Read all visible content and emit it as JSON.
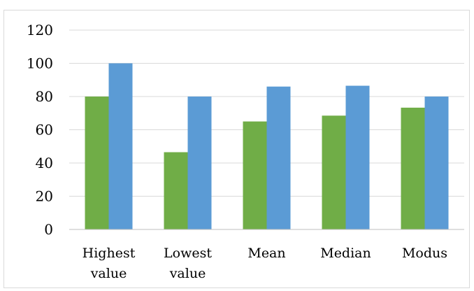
{
  "chart_data": {
    "type": "bar",
    "categories": [
      [
        "Highest",
        "value"
      ],
      [
        "Lowest",
        "value"
      ],
      [
        "Mean"
      ],
      [
        "Median"
      ],
      [
        "Modus"
      ]
    ],
    "series": [
      {
        "values": [
          80,
          46.5,
          65,
          68.5,
          73.3
        ],
        "color": "#70ad47"
      },
      {
        "values": [
          100,
          80,
          86,
          86.5,
          80
        ],
        "color": "#5b9bd5"
      }
    ],
    "ylim": [
      0,
      120
    ],
    "yticks": [
      0,
      20,
      40,
      60,
      80,
      100,
      120
    ],
    "grid": true,
    "gridColor": "#d9d9d9",
    "axisColor": "#bfbfbf",
    "legend": "none"
  }
}
